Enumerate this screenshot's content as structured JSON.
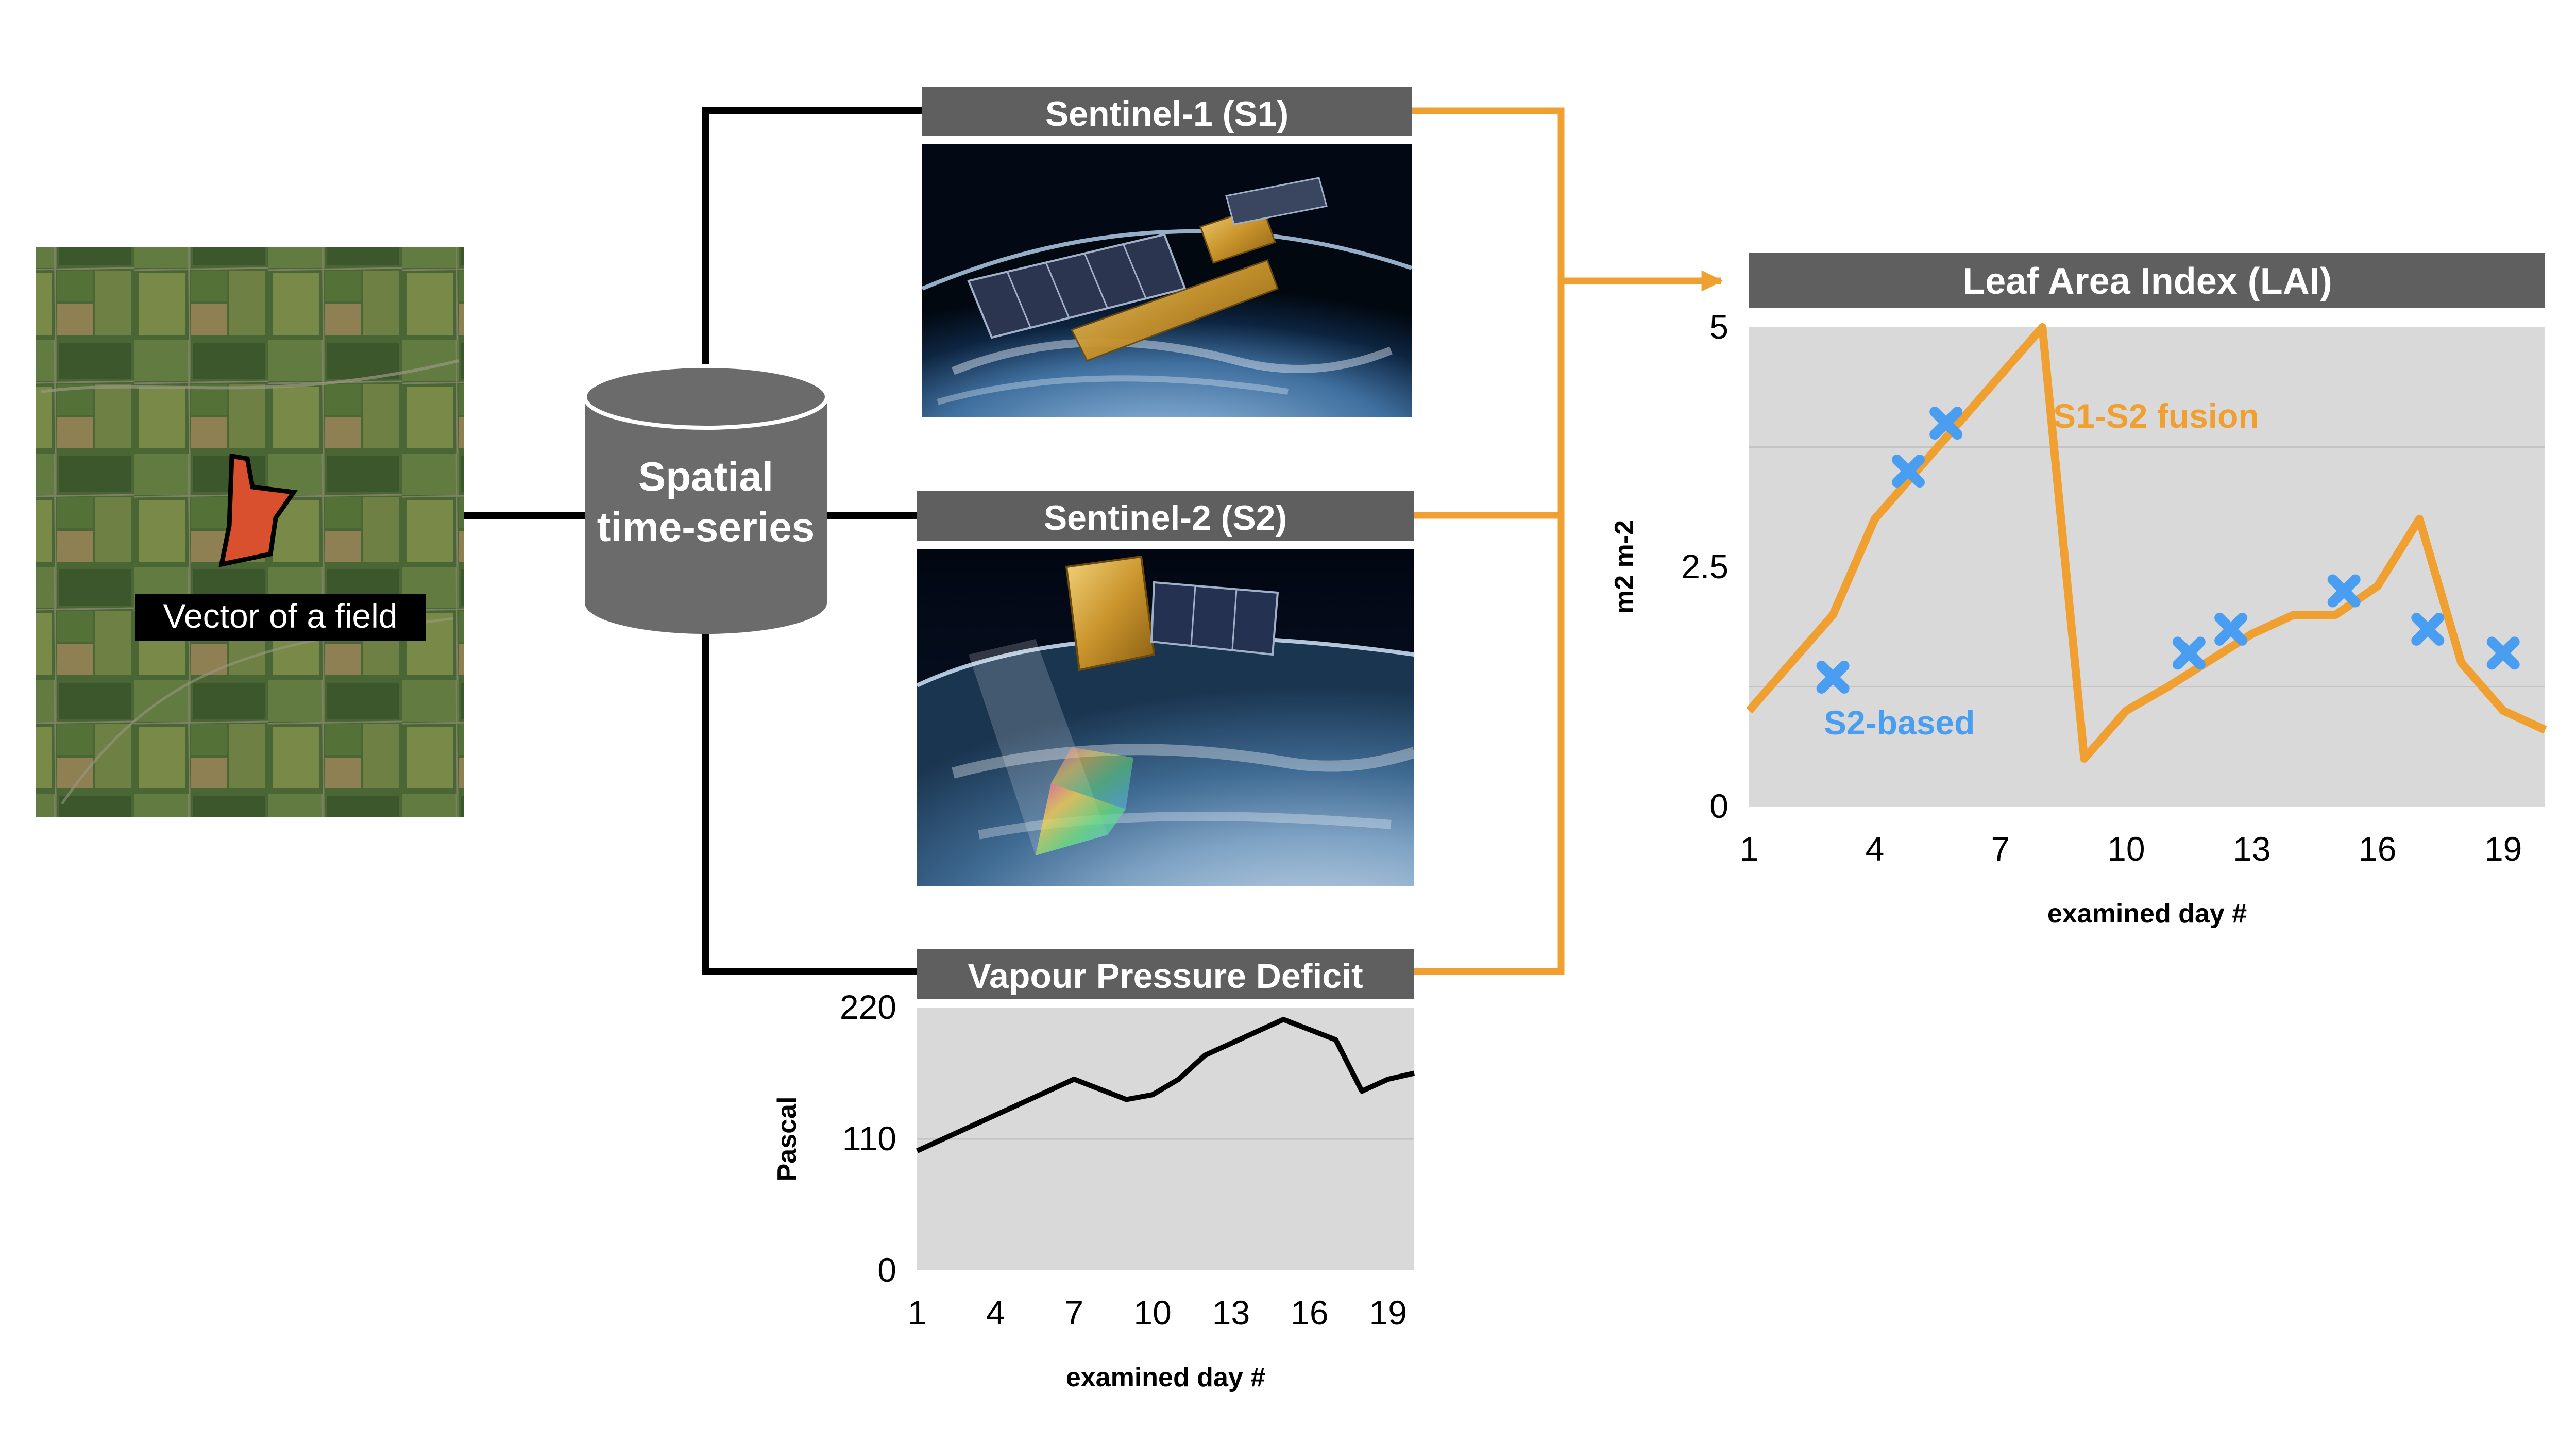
{
  "field": {
    "label": "Vector of a field"
  },
  "database": {
    "label_line1": "Spatial",
    "label_line2": "time-series"
  },
  "sources": {
    "s1_title": "Sentinel-1 (S1)",
    "s2_title": "Sentinel-2 (S2)",
    "vpd_title": "Vapour Pressure Deficit"
  },
  "output": {
    "title": "Leaf Area Index (LAI)"
  },
  "colors": {
    "orange": "#F0A030",
    "blue": "#4A9EF2",
    "header_gray": "#5F5F5F",
    "plot_bg": "#D9D9D9",
    "db_gray": "#6B6B6B",
    "field_polygon": "#D9502E"
  },
  "chart_data": [
    {
      "type": "line",
      "title": "Vapour Pressure Deficit",
      "xlabel": "examined day #",
      "ylabel": "Pascal",
      "ylim": [
        0,
        220
      ],
      "xlim": [
        1,
        20
      ],
      "yticks": [
        "0",
        "110",
        "220"
      ],
      "xticks": [
        "1",
        "4",
        "7",
        "10",
        "13",
        "16",
        "19"
      ],
      "grid": true,
      "x": [
        1,
        7,
        9,
        10,
        11,
        12,
        15,
        17,
        18,
        19,
        20
      ],
      "y": [
        100,
        160,
        143,
        147,
        160,
        180,
        210,
        193,
        150,
        160,
        165
      ]
    },
    {
      "type": "line",
      "title": "Leaf Area Index (LAI)",
      "xlabel": "examined day #",
      "ylabel": "m2 m-2",
      "ylim": [
        0,
        5
      ],
      "xlim": [
        1,
        20
      ],
      "yticks": [
        "0",
        "2.5",
        "5"
      ],
      "xticks": [
        "1",
        "4",
        "7",
        "10",
        "13",
        "16",
        "19"
      ],
      "grid": true,
      "series": [
        {
          "name": "S1-S2 fusion",
          "style": "line",
          "color": "#F0A030",
          "x": [
            1,
            3,
            4,
            8,
            9,
            10,
            11,
            13,
            14,
            15,
            16,
            17,
            18,
            19,
            20
          ],
          "y": [
            1.0,
            2.0,
            3.0,
            5.0,
            0.5,
            1.0,
            1.25,
            1.8,
            2.0,
            2.0,
            2.3,
            3.0,
            1.5,
            1.0,
            0.8
          ]
        },
        {
          "name": "S2-based",
          "style": "scatter",
          "color": "#4A9EF2",
          "x": [
            3,
            4.8,
            5.7,
            11.5,
            12.5,
            15.2,
            17.2,
            19
          ],
          "y": [
            1.35,
            3.5,
            4.0,
            1.6,
            1.85,
            2.25,
            1.85,
            1.6
          ]
        }
      ]
    }
  ]
}
